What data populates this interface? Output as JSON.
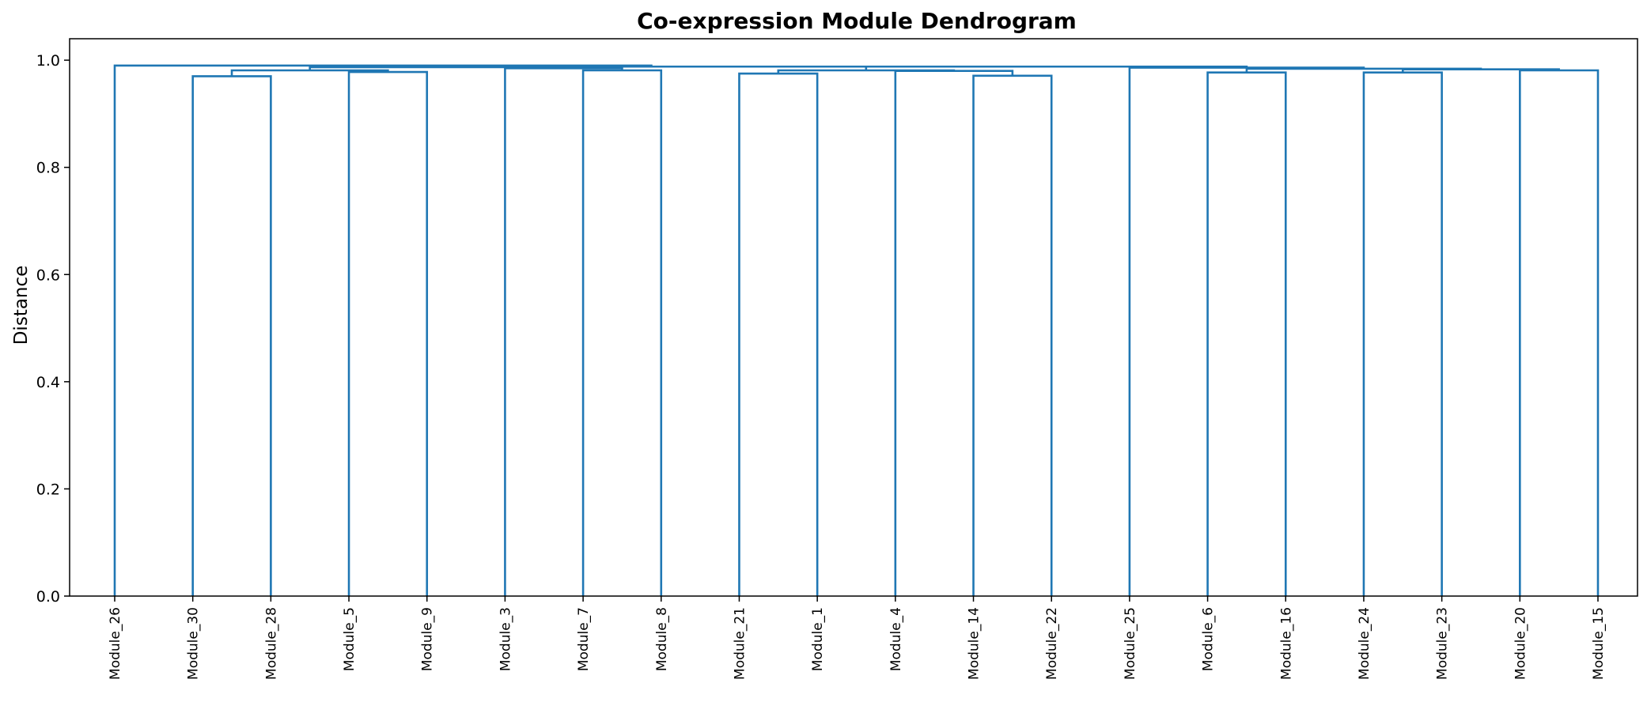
{
  "chart_data": {
    "type": "dendrogram",
    "title": "Co-expression Module Dendrogram",
    "xlabel": "",
    "ylabel": "Distance",
    "ylim": [
      0.0,
      1.04
    ],
    "yticks": [
      0.0,
      0.2,
      0.4,
      0.6,
      0.8,
      1.0
    ],
    "ytick_labels": [
      "0.0",
      "0.2",
      "0.4",
      "0.6",
      "0.8",
      "1.0"
    ],
    "grid": false,
    "line_color": "#1f77b4",
    "leaves": [
      "Module_26",
      "Module_30",
      "Module_28",
      "Module_5",
      "Module_9",
      "Module_3",
      "Module_7",
      "Module_8",
      "Module_21",
      "Module_1",
      "Module_4",
      "Module_14",
      "Module_22",
      "Module_25",
      "Module_6",
      "Module_16",
      "Module_24",
      "Module_23",
      "Module_20",
      "Module_15"
    ],
    "merges": [
      {
        "left": 1,
        "right": 2,
        "height": 0.97
      },
      {
        "left": 3,
        "right": 4,
        "height": 0.978
      },
      {
        "left": 20,
        "right": 21,
        "height": 0.981
      },
      {
        "left": 6,
        "right": 7,
        "height": 0.981
      },
      {
        "left": 5,
        "right": 23,
        "height": 0.985
      },
      {
        "left": 22,
        "right": 24,
        "height": 0.987
      },
      {
        "left": 8,
        "right": 9,
        "height": 0.975
      },
      {
        "left": 11,
        "right": 12,
        "height": 0.971
      },
      {
        "left": 10,
        "right": 27,
        "height": 0.98
      },
      {
        "left": 26,
        "right": 28,
        "height": 0.981
      },
      {
        "left": 25,
        "right": 29,
        "height": 0.988
      },
      {
        "left": 0,
        "right": 30,
        "height": 0.99
      },
      {
        "left": 14,
        "right": 15,
        "height": 0.977
      },
      {
        "left": 16,
        "right": 17,
        "height": 0.977
      },
      {
        "left": 18,
        "right": 19,
        "height": 0.981
      },
      {
        "left": 33,
        "right": 34,
        "height": 0.983
      },
      {
        "left": 32,
        "right": 35,
        "height": 0.984
      },
      {
        "left": 13,
        "right": 36,
        "height": 0.986
      },
      {
        "left": 31,
        "right": 37,
        "height": 0.988
      }
    ]
  }
}
